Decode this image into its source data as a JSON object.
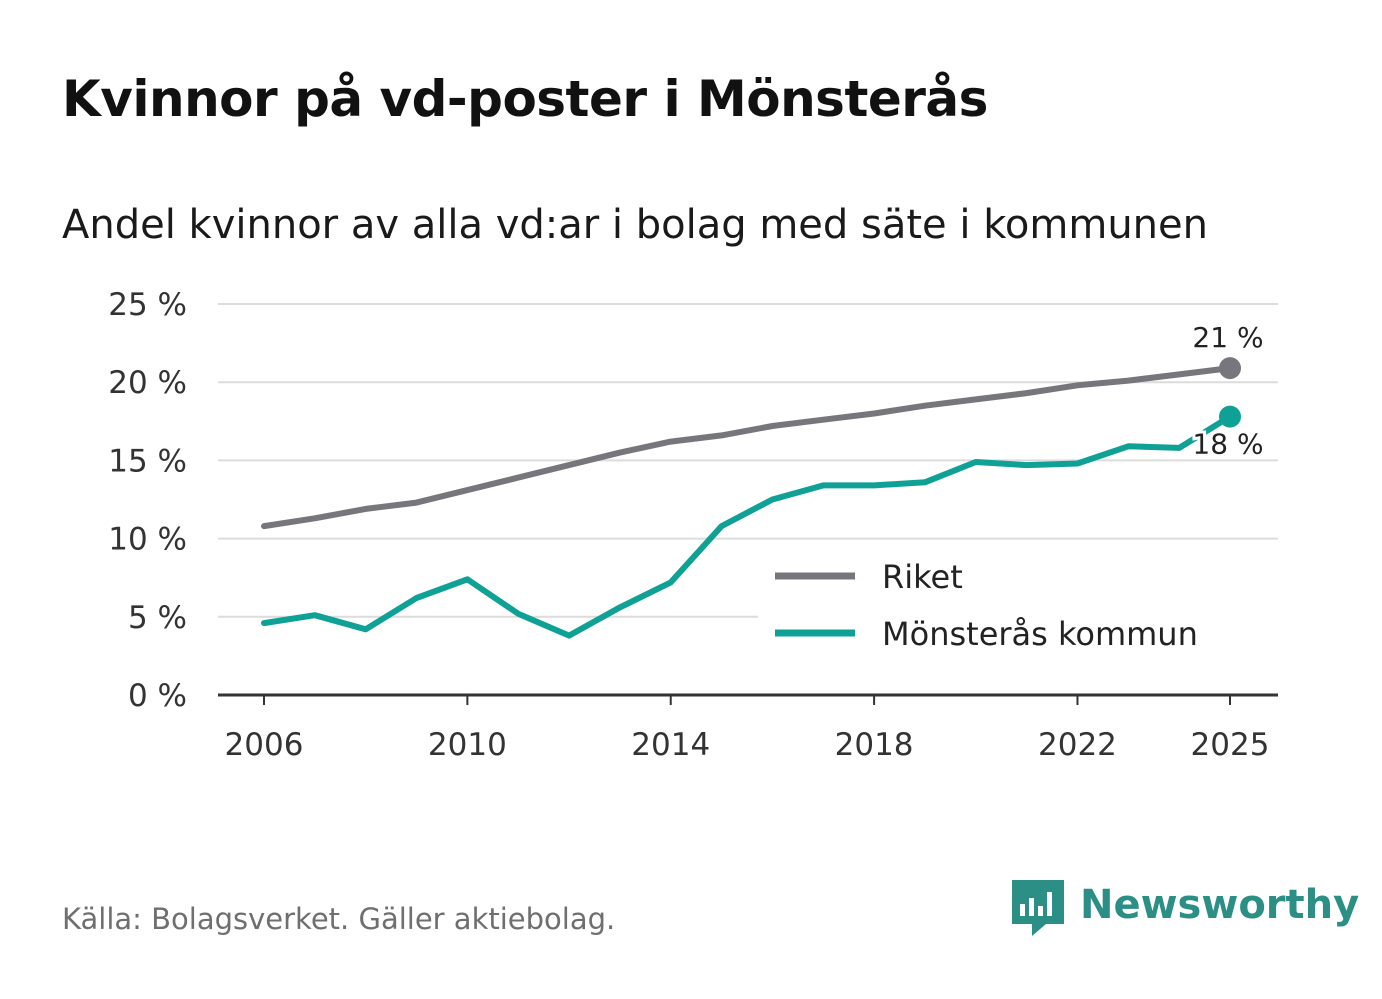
{
  "title": "Kvinnor på vd-poster i Mönsterås",
  "subtitle": "Andel kvinnor av alla vd:ar i bolag med säte i kommunen",
  "source": "Källa: Bolagsverket. Gäller aktiebolag.",
  "brand": {
    "name": "Newsworthy",
    "color": "#2b8f86",
    "icon": "bar-chart-speech-icon"
  },
  "chart_data": {
    "type": "line",
    "title": "Kvinnor på vd-poster i Mönsterås",
    "subtitle": "Andel kvinnor av alla vd:ar i bolag med säte i kommunen",
    "xlabel": "",
    "ylabel": "",
    "x": [
      2006,
      2007,
      2008,
      2009,
      2010,
      2011,
      2012,
      2013,
      2014,
      2015,
      2016,
      2017,
      2018,
      2019,
      2020,
      2021,
      2022,
      2023,
      2024,
      2025
    ],
    "xticks": [
      2006,
      2010,
      2014,
      2018,
      2022,
      2025
    ],
    "xtick_labels": [
      "2006",
      "2010",
      "2014",
      "2018",
      "2022",
      "2025"
    ],
    "xlim": [
      2006,
      2025
    ],
    "ylim": [
      0,
      25
    ],
    "yticks": [
      0,
      5,
      10,
      15,
      20,
      25
    ],
    "ytick_labels": [
      "0 %",
      "5 %",
      "10 %",
      "15 %",
      "20 %",
      "25 %"
    ],
    "grid": true,
    "legend_position": "bottom-right",
    "series": [
      {
        "name": "Riket",
        "color": "#77767c",
        "values": [
          10.8,
          11.3,
          11.9,
          12.3,
          13.1,
          13.9,
          14.7,
          15.5,
          16.2,
          16.6,
          17.2,
          17.6,
          18.0,
          18.5,
          18.9,
          19.3,
          19.8,
          20.1,
          20.5,
          20.9
        ],
        "end_label": "21 %"
      },
      {
        "name": "Mönsterås kommun",
        "color": "#0fa195",
        "values": [
          4.6,
          5.1,
          4.2,
          6.2,
          7.4,
          5.2,
          3.8,
          5.6,
          7.2,
          10.8,
          12.5,
          13.4,
          13.4,
          13.6,
          14.9,
          14.7,
          14.8,
          15.9,
          15.8,
          17.8
        ],
        "end_label": "18 %"
      }
    ]
  }
}
